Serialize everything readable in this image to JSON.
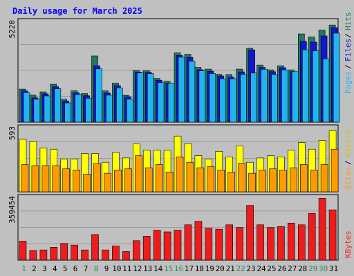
{
  "chart_data": {
    "type": "bar",
    "title": "Daily usage for March 2025",
    "categories": [
      "1",
      "2",
      "3",
      "4",
      "5",
      "6",
      "7",
      "8",
      "9",
      "10",
      "11",
      "12",
      "13",
      "14",
      "15",
      "16",
      "17",
      "18",
      "19",
      "20",
      "21",
      "22",
      "23",
      "24",
      "25",
      "26",
      "27",
      "28",
      "29",
      "30",
      "31"
    ],
    "weekend_days": [
      "1",
      "8",
      "15",
      "16",
      "22",
      "29",
      "30"
    ],
    "panels": [
      {
        "id": "hits-files-pages",
        "max_label": "5220",
        "ymax": 5220,
        "series": [
          {
            "name": "Hits",
            "color": "#1f7a5e",
            "values": [
              1700,
              1390,
              1560,
              1950,
              1180,
              1610,
              1470,
              3410,
              1610,
              2010,
              1380,
              2650,
              2640,
              2250,
              2100,
              3560,
              3490,
              2820,
              2730,
              2460,
              2450,
              2730,
              3800,
              2940,
              2690,
              2900,
              2690,
              4540,
              4380,
              4740,
              5000
            ]
          },
          {
            "name": "Files",
            "color": "#1414d8",
            "values": [
              1610,
              1250,
              1460,
              1820,
              1090,
              1510,
              1360,
              2900,
              1500,
              1880,
              1300,
              2580,
              2560,
              2160,
              2000,
              3430,
              3330,
              2700,
              2620,
              2380,
              2320,
              2590,
              3720,
              2820,
              2600,
              2800,
              2600,
              4160,
              4120,
              4440,
              4860
            ]
          },
          {
            "name": "Pages",
            "color": "#23b4f0",
            "values": [
              1520,
              1180,
              1350,
              1720,
              990,
              1420,
              1230,
              2740,
              1390,
              1760,
              1180,
              2530,
              2500,
              2030,
              2000,
              3340,
              3130,
              2640,
              2500,
              2230,
              2230,
              2460,
              2530,
              2720,
              2450,
              2680,
              2600,
              3720,
              3670,
              3260,
              4580
            ]
          }
        ]
      },
      {
        "id": "visits-sites",
        "max_label": "593",
        "ymax": 593,
        "series": [
          {
            "name": "Visits",
            "color": "#ffff00",
            "values": [
              480,
              460,
              400,
              390,
              300,
              300,
              350,
              350,
              270,
              360,
              310,
              440,
              380,
              380,
              380,
              510,
              440,
              330,
              300,
              370,
              320,
              420,
              270,
              310,
              330,
              320,
              380,
              450,
              390,
              470,
              560
            ]
          },
          {
            "name": "Sites",
            "color": "#ff9a00",
            "values": [
              250,
              240,
              240,
              240,
              210,
              200,
              160,
              260,
              170,
              200,
              210,
              330,
              220,
              250,
              180,
              320,
              270,
              220,
              230,
              200,
              180,
              260,
              170,
              200,
              210,
              200,
              220,
              250,
              200,
              250,
              390
            ]
          }
        ]
      },
      {
        "id": "kbytes",
        "max_label": "359454",
        "ymax": 359454,
        "series": [
          {
            "name": "KBytes",
            "color": "#ee1c1c",
            "values": [
              108000,
              55000,
              58000,
              73000,
              95000,
              85000,
              58000,
              145000,
              58000,
              80000,
              49000,
              110000,
              135000,
              170000,
              160000,
              170000,
              200000,
              220000,
              180000,
              175000,
              200000,
              185000,
              310000,
              200000,
              185000,
              190000,
              210000,
              200000,
              265000,
              350000,
              285000
            ]
          }
        ]
      }
    ]
  }
}
